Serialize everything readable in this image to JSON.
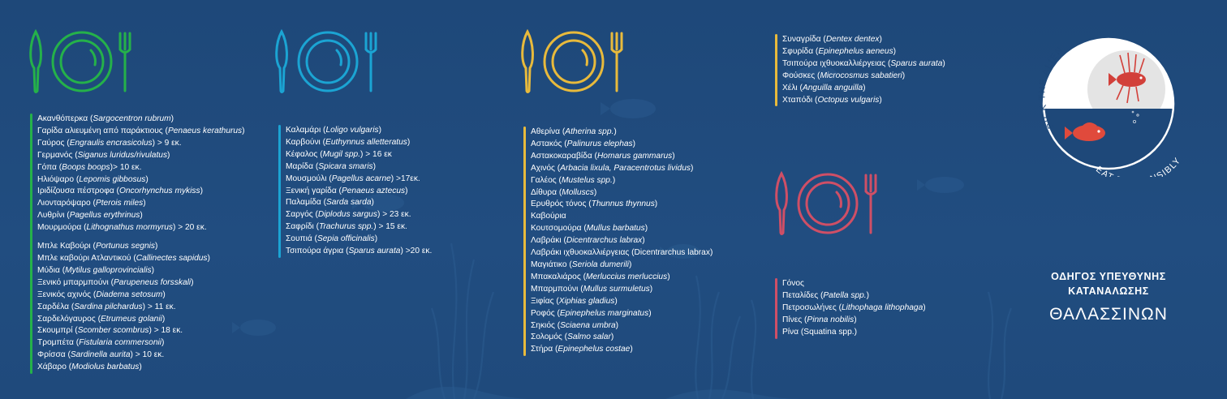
{
  "colors": {
    "background": "#1f4a7c",
    "green": "#25b14a",
    "cyan": "#1ba4d3",
    "yellow": "#e8ba3c",
    "pink": "#cf4f66",
    "text": "#ffffff"
  },
  "columns": {
    "green": {
      "icon": "plate-fork-knife-icon",
      "items": [
        {
          "name": "Ακανθόπερκα",
          "latin": "Sargocentron rubrum",
          "suffix": ""
        },
        {
          "name": "Γαρίδα αλιευμένη από παράκτιους",
          "latin": "Penaeus kerathurus",
          "suffix": ""
        },
        {
          "name": "Γαύρος",
          "latin": "Engraulis encrasicolus",
          "suffix": " > 9 εκ."
        },
        {
          "name": "Γερμανός",
          "latin": "Siganus luridus/rivulatus",
          "suffix": ""
        },
        {
          "name": "Γόπα",
          "latin": "Boops boops",
          "suffix": "> 10 εκ."
        },
        {
          "name": "Ηλιόψαρο",
          "latin": "Lepomis gibbosus",
          "suffix": ""
        },
        {
          "name": "Ιριδίζουσα πέστροφα",
          "latin": "Oncorhynchus mykiss",
          "suffix": ""
        },
        {
          "name": "Λιονταρόψαρο",
          "latin": "Pterois miles",
          "suffix": ""
        },
        {
          "name": "Λυθρίνι",
          "latin": "Pagellus erythrinus",
          "suffix": ""
        },
        {
          "name": "Μουρμούρα",
          "latin": "Lithognathus mormyrus",
          "suffix": " > 20 εκ."
        },
        {
          "name": "Μπλε Καβούρι",
          "latin": "Portunus segnis",
          "suffix": ""
        },
        {
          "name": "Μπλε καβούρι Ατλαντικού",
          "latin": "Callinectes sapidus",
          "suffix": ""
        },
        {
          "name": "Μύδια",
          "latin": "Mytilus galloprovincialis",
          "suffix": ""
        },
        {
          "name": "Ξενικό μπαρμπούνι",
          "latin": "Parupeneus forsskali",
          "suffix": ""
        },
        {
          "name": "Ξενικός αχινός",
          "latin": "Diadema setosum",
          "suffix": ""
        },
        {
          "name": "Σαρδέλα",
          "latin": "Sardina pilchardus",
          "suffix": " > 11 εκ."
        },
        {
          "name": "Σαρδελόγαυρος",
          "latin": "Etrumeus golanii",
          "suffix": ""
        },
        {
          "name": "Σκουμπρί",
          "latin": "Scomber scombrus",
          "suffix": " > 18 εκ."
        },
        {
          "name": "Τρομπέτα",
          "latin": "Fistularia commersonii",
          "suffix": ""
        },
        {
          "name": "Φρίσσα",
          "latin": "Sardinella aurita",
          "suffix": " > 10 εκ."
        },
        {
          "name": "Χάβαρο",
          "latin": "Modiolus barbatus",
          "suffix": ""
        }
      ]
    },
    "cyan": {
      "icon": "plate-fork-knife-icon",
      "items": [
        {
          "name": "Καλαμάρι",
          "latin": "Loligo vulgaris",
          "suffix": ""
        },
        {
          "name": "Καρβούνι",
          "latin": "Euthynnus alletteratus",
          "suffix": ""
        },
        {
          "name": "Κέφαλος",
          "latin": "Mugil spp.",
          "suffix": " > 16 εκ"
        },
        {
          "name": "Μαρίδα",
          "latin": "Spicara smaris",
          "suffix": ""
        },
        {
          "name": "Μουσμούλι",
          "latin": "Pagellus acarne",
          "suffix": " >17εκ."
        },
        {
          "name": "Ξενική γαρίδα",
          "latin": "Penaeus aztecus",
          "suffix": ""
        },
        {
          "name": "Παλαμίδα",
          "latin": "Sarda sarda",
          "suffix": ""
        },
        {
          "name": "Σαργός",
          "latin": "Diplodus sargus",
          "suffix": " > 23 εκ."
        },
        {
          "name": "Σαφρίδι",
          "latin": "Trachurus spp.",
          "suffix": " > 15 εκ."
        },
        {
          "name": "Σουπιά",
          "latin": "Sepia officinalis",
          "suffix": ""
        },
        {
          "name": "Τσιπούρα άγρια",
          "latin": "Sparus aurata",
          "suffix": " >20 εκ."
        }
      ]
    },
    "yellow": {
      "icon": "plate-fork-knife-icon",
      "items": [
        {
          "name": "Αθερίνα",
          "latin": "Atherina spp.",
          "suffix": ""
        },
        {
          "name": "Αστακός",
          "latin": "Palinurus elephas",
          "suffix": ""
        },
        {
          "name": "Αστακοκαραβίδα",
          "latin": "Homarus gammarus",
          "suffix": ""
        },
        {
          "name": "Αχινός",
          "latin": "Arbacia lixula, Paracentrotus lividus",
          "suffix": ""
        },
        {
          "name": "Γαλέος",
          "latin": "Mustelus spp.",
          "suffix": ""
        },
        {
          "name": "Δίθυρα",
          "latin": "Molluscs",
          "suffix": ""
        },
        {
          "name": "Ερυθρός τόνος",
          "latin": "Thunnus thynnus",
          "suffix": ""
        },
        {
          "name": "Καβούρια",
          "latin": "",
          "suffix": ""
        },
        {
          "name": "Κουτσομούρα",
          "latin": "Mullus barbatus",
          "suffix": ""
        },
        {
          "name": "Λαβράκι",
          "latin": "Dicentrarchus labrax",
          "suffix": ""
        },
        {
          "name": "Λαβράκι ιχθυοκαλλιέργειας",
          "latin": "",
          "suffix": " (Dicentrarchus labrax)"
        },
        {
          "name": "Μαγιάτικο",
          "latin": "Seriola dumerili",
          "suffix": ""
        },
        {
          "name": "Μπακαλιάρος",
          "latin": "Merluccius merluccius",
          "suffix": ""
        },
        {
          "name": "Μπαρμπούνι",
          "latin": "Mullus surmuletus",
          "suffix": ""
        },
        {
          "name": "Ξιφίας",
          "latin": "Xiphias gladius",
          "suffix": ""
        },
        {
          "name": "Ροφός",
          "latin": "Epinephelus marginatus",
          "suffix": ""
        },
        {
          "name": "Σηκιός",
          "latin": "Sciaena umbra",
          "suffix": ""
        },
        {
          "name": "Σολομός",
          "latin": "Salmo salar",
          "suffix": ""
        },
        {
          "name": "Στήρα",
          "latin": "Epinephelus costae",
          "suffix": ""
        }
      ],
      "extra_items": [
        {
          "name": "Συναγρίδα",
          "latin": "Dentex dentex",
          "suffix": ""
        },
        {
          "name": "Σφυρίδα",
          "latin": "Epinephelus aeneus",
          "suffix": ""
        },
        {
          "name": "Τσιπούρα ιχθυοκαλλιέργειας",
          "latin": "Sparus aurata",
          "suffix": ""
        },
        {
          "name": "Φούσκες",
          "latin": "Microcosmus sabatieri",
          "suffix": ""
        },
        {
          "name": "Χέλι",
          "latin": "Anguilla anguilla",
          "suffix": ""
        },
        {
          "name": "Χταπόδι",
          "latin": "Octopus vulgaris",
          "suffix": ""
        }
      ]
    },
    "pink": {
      "icon": "plate-fork-knife-icon",
      "items": [
        {
          "name": "Γόνος",
          "latin": "",
          "suffix": ""
        },
        {
          "name": "Πεταλίδες",
          "latin": "Patella spp.",
          "suffix": ""
        },
        {
          "name": "Πετροσωλήνες",
          "latin": "Lithophaga lithophaga",
          "suffix": ""
        },
        {
          "name": "Πίνες",
          "latin": "Pinna nobilis",
          "suffix": ""
        },
        {
          "name": "Ρίνα",
          "latin": "",
          "suffix": " (Squatina spp.)"
        }
      ]
    }
  },
  "badge": {
    "top_text": "PICK THE ALIEN",
    "bottom_text": "EAT RESPONSIBLY",
    "icon": "lionfish-icon",
    "icon_2": "red-fish-icon"
  },
  "brand": {
    "line1": "ΟΔΗΓΟΣ ΥΠΕΥΘΥΝΗΣ",
    "line2": "ΚΑΤΑΝΑΛΩΣΗΣ",
    "line3": "ΘΑΛΑΣΣΙΝΩΝ"
  }
}
